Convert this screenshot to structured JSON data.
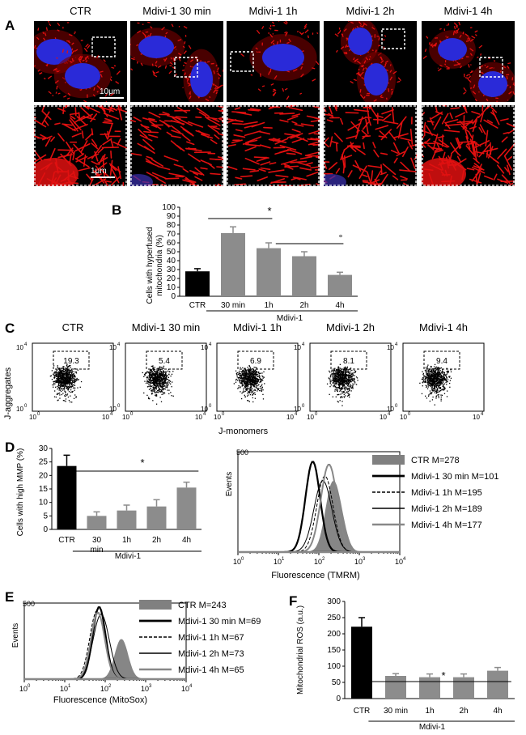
{
  "figure": {
    "panel_letters": {
      "a": "A",
      "b": "B",
      "c": "C",
      "d": "D",
      "e": "E",
      "f": "F"
    },
    "conditions": [
      "CTR",
      "Mdivi-1 30 min",
      "Mdivi-1 1h",
      "Mdivi-1 2h",
      "Mdivi-1 4h"
    ],
    "scale_top": "10μm",
    "scale_bottom": "1μm",
    "colors": {
      "bar_black": "#000000",
      "bar_gray": "#8c8c8c",
      "mito_red": "#e01010",
      "nucleus_blue": "#2a2ad8",
      "filled_hist": "#808080"
    }
  },
  "panelB": {
    "ylabel_line1": "Cells with hyperfused",
    "ylabel_line2": "mitochondria (%)",
    "group_label": "Mdivi-1",
    "sig1": "*",
    "sig2": "°",
    "chart_data": {
      "type": "bar",
      "categories": [
        "CTR",
        "30 min",
        "1h",
        "2h",
        "4h"
      ],
      "values": [
        28,
        71,
        54,
        45,
        24
      ],
      "errors": [
        3,
        7,
        6,
        5,
        3
      ],
      "colors": [
        "#000000",
        "#8c8c8c",
        "#8c8c8c",
        "#8c8c8c",
        "#8c8c8c"
      ],
      "ylim": [
        0,
        100
      ],
      "yticks": [
        0,
        10,
        20,
        30,
        40,
        50,
        60,
        70,
        80,
        90,
        100
      ]
    }
  },
  "panelC": {
    "ylabel": "J-aggregates",
    "xlabel": "J-monomers",
    "titles": [
      "CTR",
      "Mdivi-1 30 min",
      "Mdivi-1 1h",
      "Mdivi-1 2h",
      "Mdivi-1 4h"
    ],
    "gate_values": [
      "19.3",
      "5.4",
      "6.9",
      "8.1",
      "9.4"
    ],
    "axis_low": "10",
    "axis_exp_low": "0",
    "axis_high": "10",
    "axis_exp_high": "4"
  },
  "panelD_bar": {
    "ylabel": "Cells with high MMP (%)",
    "group_label": "Mdivi-1",
    "sig": "*",
    "chart_data": {
      "type": "bar",
      "categories": [
        "CTR",
        "30\nmin",
        "1h",
        "2h",
        "4h"
      ],
      "values": [
        23.5,
        5,
        7,
        8.5,
        15.5
      ],
      "errors": [
        4,
        1.5,
        2,
        2.5,
        2
      ],
      "colors": [
        "#000000",
        "#8c8c8c",
        "#8c8c8c",
        "#8c8c8c",
        "#8c8c8c"
      ],
      "ylim": [
        0,
        30
      ],
      "yticks": [
        0,
        5,
        10,
        15,
        20,
        25,
        30
      ]
    }
  },
  "panelD_hist": {
    "ylabel": "Events",
    "xlabel": "Fluorescence (TMRM)",
    "ymax_label": "500",
    "legend": [
      {
        "label": "CTR  M=278",
        "style": "filled"
      },
      {
        "label": "Mdivi-1 30 min M=101",
        "style": "thick"
      },
      {
        "label": "Mdivi-1 1h M=195",
        "style": "dashed"
      },
      {
        "label": "Mdivi-1 2h M=189",
        "style": "thin"
      },
      {
        "label": "Mdivi-1 4h M=177",
        "style": "gray"
      }
    ]
  },
  "panelE_hist": {
    "ylabel": "Events",
    "xlabel": "Fluorescence (MitoSox)",
    "ymax_label": "500",
    "legend": [
      {
        "label": "CTR  M=243",
        "style": "filled"
      },
      {
        "label": "Mdivi-1 30 min M=69",
        "style": "thick"
      },
      {
        "label": "Mdivi-1 1h M=67",
        "style": "dashed"
      },
      {
        "label": "Mdivi-1 2h M=73",
        "style": "thin"
      },
      {
        "label": "Mdivi-1 4h M=65",
        "style": "gray"
      }
    ]
  },
  "panelF": {
    "ylabel": "Mitochondrial ROS (a.u.)",
    "group_label": "Mdivi-1",
    "sig": "*",
    "chart_data": {
      "type": "bar",
      "categories": [
        "CTR",
        "30 min",
        "1h",
        "2h",
        "4h"
      ],
      "values": [
        222,
        70,
        66,
        66,
        86
      ],
      "errors": [
        28,
        7,
        10,
        10,
        10
      ],
      "colors": [
        "#000000",
        "#8c8c8c",
        "#8c8c8c",
        "#8c8c8c",
        "#8c8c8c"
      ],
      "ylim": [
        0,
        300
      ],
      "yticks": [
        0,
        50,
        100,
        150,
        200,
        250,
        300
      ]
    }
  }
}
